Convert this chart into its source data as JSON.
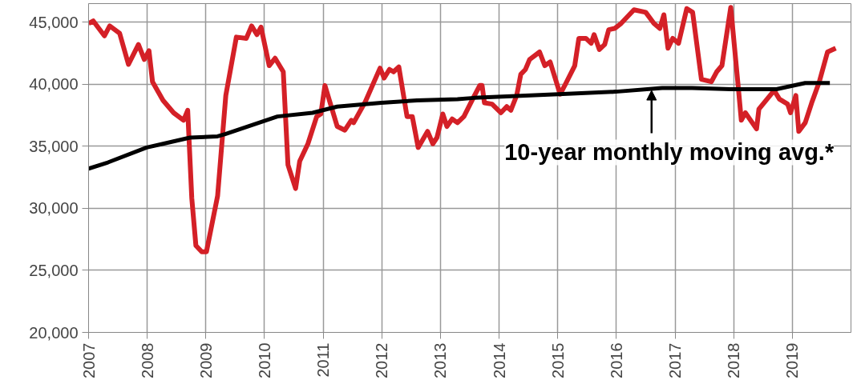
{
  "chart_data": {
    "type": "line",
    "xlim": [
      2007,
      2020
    ],
    "ylim": [
      20000,
      46500
    ],
    "xticks": [
      2007,
      2008,
      2009,
      2010,
      2011,
      2012,
      2013,
      2014,
      2015,
      2016,
      2017,
      2018,
      2019
    ],
    "yticks": [
      {
        "value": 20000,
        "label": "20,000"
      },
      {
        "value": 25000,
        "label": "25,000"
      },
      {
        "value": 30000,
        "label": "30,000"
      },
      {
        "value": 35000,
        "label": "35,000"
      },
      {
        "value": 40000,
        "label": "40,000"
      },
      {
        "value": 45000,
        "label": "45,000"
      }
    ],
    "grid": true,
    "marker": "none",
    "line_style": "solid",
    "series": [
      {
        "color": "#d42027",
        "x": [
          2007.0,
          2007.08,
          2007.27,
          2007.36,
          2007.53,
          2007.68,
          2007.85,
          2007.95,
          2008.03,
          2008.09,
          2008.27,
          2008.45,
          2008.62,
          2008.69,
          2008.76,
          2008.83,
          2008.93,
          2009.01,
          2009.2,
          2009.34,
          2009.52,
          2009.69,
          2009.78,
          2009.87,
          2009.94,
          2010.08,
          2010.18,
          2010.32,
          2010.4,
          2010.53,
          2010.6,
          2010.74,
          2010.89,
          2010.96,
          2011.03,
          2011.24,
          2011.37,
          2011.48,
          2011.52,
          2011.72,
          2011.97,
          2012.04,
          2012.13,
          2012.2,
          2012.29,
          2012.43,
          2012.52,
          2012.62,
          2012.78,
          2012.87,
          2012.94,
          2013.04,
          2013.11,
          2013.2,
          2013.29,
          2013.4,
          2013.57,
          2013.67,
          2013.71,
          2013.75,
          2013.88,
          2014.03,
          2014.13,
          2014.2,
          2014.3,
          2014.37,
          2014.45,
          2014.52,
          2014.69,
          2014.78,
          2014.87,
          2015.04,
          2015.13,
          2015.29,
          2015.36,
          2015.48,
          2015.57,
          2015.62,
          2015.71,
          2015.8,
          2015.87,
          2015.97,
          2016.08,
          2016.3,
          2016.5,
          2016.64,
          2016.74,
          2016.81,
          2016.88,
          2016.96,
          2017.06,
          2017.2,
          2017.3,
          2017.45,
          2017.62,
          2017.71,
          2017.8,
          2017.95,
          2018.07,
          2018.13,
          2018.2,
          2018.39,
          2018.43,
          2018.69,
          2018.78,
          2018.92,
          2018.97,
          2019.06,
          2019.11,
          2019.22,
          2019.33,
          2019.46,
          2019.6,
          2019.74
        ],
        "values": [
          44900,
          45100,
          43900,
          44700,
          44100,
          41600,
          43200,
          42000,
          42700,
          40200,
          38700,
          37700,
          37100,
          37900,
          30800,
          27000,
          26500,
          26500,
          31000,
          39100,
          43800,
          43700,
          44700,
          44000,
          44600,
          41500,
          42100,
          41000,
          33500,
          31600,
          33800,
          35200,
          37400,
          37600,
          39900,
          36600,
          36300,
          37100,
          36900,
          38600,
          41300,
          40500,
          41200,
          41000,
          41400,
          37400,
          37400,
          34900,
          36200,
          35200,
          35700,
          37600,
          36600,
          37200,
          36900,
          37400,
          39000,
          39900,
          39900,
          38500,
          38400,
          37700,
          38200,
          37900,
          39100,
          40800,
          41200,
          42000,
          42600,
          41500,
          41800,
          39200,
          40000,
          41500,
          43700,
          43700,
          43300,
          44000,
          42800,
          43200,
          44400,
          44500,
          44900,
          46000,
          45800,
          44900,
          44500,
          45600,
          42900,
          43700,
          43300,
          46100,
          45800,
          40400,
          40200,
          41000,
          41500,
          46200,
          40200,
          37100,
          37700,
          36400,
          38000,
          39500,
          38800,
          38400,
          37700,
          39100,
          36200,
          36900,
          38500,
          40200,
          42600,
          42900
        ]
      },
      {
        "color": "#000000",
        "x": [
          2007.0,
          2007.33,
          2007.99,
          2008.27,
          2008.73,
          2009.2,
          2009.34,
          2010.22,
          2010.82,
          2011.24,
          2011.99,
          2012.6,
          2013.29,
          2013.57,
          2015.01,
          2015.99,
          2016.78,
          2017.29,
          2017.94,
          2018.73,
          2019.22,
          2019.64
        ],
        "values": [
          33200,
          33700,
          34900,
          35200,
          35700,
          35800,
          36000,
          37400,
          37700,
          38200,
          38500,
          38700,
          38800,
          38900,
          39200,
          39400,
          39700,
          39700,
          39600,
          39600,
          40100,
          40100
        ]
      }
    ],
    "annotations": [
      {
        "text": "10-year monthly moving avg.*",
        "x": 2016.6,
        "y": 39500
      }
    ]
  }
}
